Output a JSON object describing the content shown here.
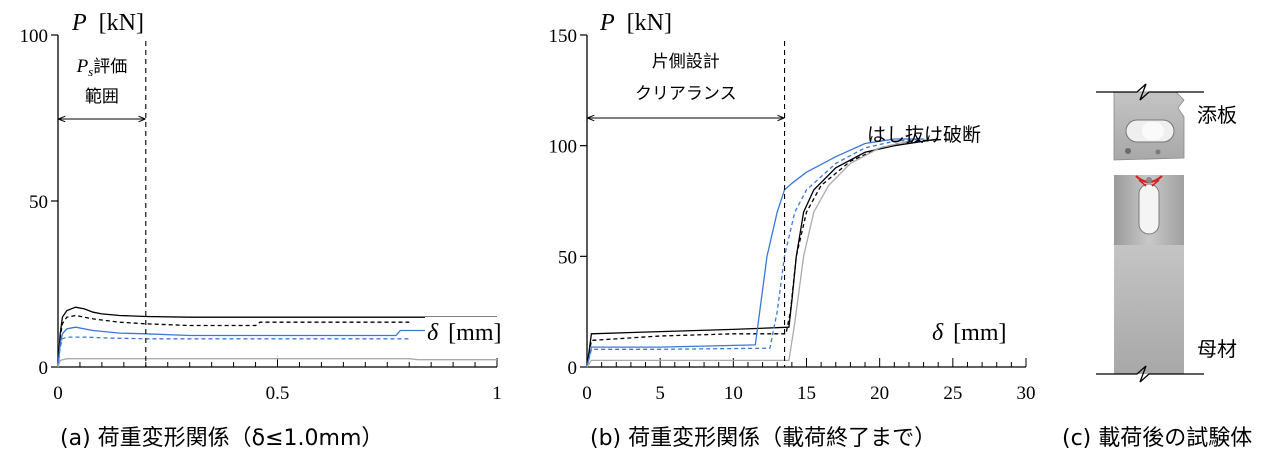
{
  "chart_data": [
    {
      "id": "a",
      "type": "line",
      "caption": "(a) 荷重変形関係（δ≤1.0mm）",
      "ylabel_symbol": "P",
      "ylabel_unit": "[kN]",
      "xlabel_symbol": "δ",
      "xlabel_unit": "[mm]",
      "xlim": [
        0,
        1
      ],
      "ylim": [
        0,
        100
      ],
      "xticks": [
        0,
        0.5,
        1
      ],
      "xtick_labels": [
        "0",
        "0.5",
        "1"
      ],
      "yticks": [
        0,
        50,
        100
      ],
      "ytick_labels": [
        "0",
        "50",
        "100"
      ],
      "annotation": {
        "line1": "Ps評価",
        "line2": "範囲",
        "x_end": 0.2
      },
      "series": [
        {
          "color": "#000000",
          "dash": "solid",
          "x": [
            0,
            0.005,
            0.01,
            0.02,
            0.04,
            0.06,
            0.08,
            0.1,
            0.14,
            0.2,
            0.3,
            0.5,
            0.7,
            0.9,
            1.0
          ],
          "y": [
            0,
            10,
            15,
            17,
            18,
            17.5,
            16.5,
            16,
            15.5,
            15.2,
            15,
            15,
            15,
            15,
            15
          ]
        },
        {
          "color": "#000000",
          "dash": "dashed",
          "x": [
            0,
            0.005,
            0.01,
            0.02,
            0.04,
            0.08,
            0.14,
            0.2,
            0.3,
            0.45,
            0.46,
            0.6,
            0.8
          ],
          "y": [
            0,
            9,
            13,
            15,
            15.5,
            14.5,
            13.5,
            13,
            12.5,
            12.5,
            13.5,
            13.5,
            13.5
          ]
        },
        {
          "color": "#3a78d8",
          "dash": "solid",
          "x": [
            0,
            0.005,
            0.01,
            0.02,
            0.04,
            0.08,
            0.14,
            0.2,
            0.3,
            0.5,
            0.7,
            0.77,
            0.78,
            0.85
          ],
          "y": [
            0,
            7,
            10,
            11.5,
            12,
            11,
            10.2,
            10,
            9.5,
            9.5,
            9.5,
            9.5,
            11,
            11
          ]
        },
        {
          "color": "#3a78d8",
          "dash": "dashed",
          "x": [
            0,
            0.005,
            0.01,
            0.02,
            0.06,
            0.12,
            0.2,
            0.4,
            0.6,
            0.8
          ],
          "y": [
            0,
            6,
            8.5,
            9,
            9,
            8.7,
            8.5,
            8.5,
            8.5,
            8.5
          ]
        },
        {
          "color": "#aaaaaa",
          "dash": "solid",
          "x": [
            0,
            0.005,
            0.02,
            0.1,
            0.2,
            0.4,
            0.6,
            0.8,
            0.82,
            1.0
          ],
          "y": [
            0,
            2,
            2.5,
            2.5,
            2.5,
            2.5,
            2.5,
            2.5,
            2.2,
            2.2
          ]
        }
      ]
    },
    {
      "id": "b",
      "type": "line",
      "caption": "(b) 荷重変形関係（載荷終了まで）",
      "ylabel_symbol": "P",
      "ylabel_unit": "[kN]",
      "xlabel_symbol": "δ",
      "xlabel_unit": "[mm]",
      "xlim": [
        0,
        30
      ],
      "ylim": [
        0,
        150
      ],
      "xticks": [
        0,
        5,
        10,
        15,
        20,
        25,
        30
      ],
      "xtick_labels": [
        "0",
        "5",
        "10",
        "15",
        "20",
        "25",
        "30"
      ],
      "yticks": [
        0,
        50,
        100,
        150
      ],
      "ytick_labels": [
        "0",
        "50",
        "100",
        "150"
      ],
      "annotation": {
        "line1": "片側設計",
        "line2": "クリアランス",
        "x_end": 13.5
      },
      "fracture_label": "はし抜け破断",
      "series": [
        {
          "color": "#000000",
          "dash": "solid",
          "x": [
            0,
            0.3,
            5,
            10,
            13.8,
            14.0,
            14.3,
            14.8,
            15.5,
            17,
            19,
            21,
            23,
            24
          ],
          "y": [
            0,
            15,
            16,
            17,
            18,
            30,
            50,
            70,
            80,
            90,
            97,
            100,
            102,
            103
          ]
        },
        {
          "color": "#000000",
          "dash": "dashed",
          "x": [
            0,
            0.3,
            5,
            10,
            13.6,
            13.9,
            14.3,
            15,
            16,
            18,
            20,
            22,
            25
          ],
          "y": [
            0,
            12,
            14,
            15,
            15,
            25,
            50,
            70,
            82,
            93,
            99,
            102,
            103
          ]
        },
        {
          "color": "#3a78d8",
          "dash": "solid",
          "x": [
            0,
            0.3,
            5,
            11.5,
            11.8,
            12.3,
            13.0,
            13.5,
            14,
            15,
            17,
            19,
            21,
            23
          ],
          "y": [
            0,
            9,
            9,
            10,
            25,
            50,
            70,
            80,
            83,
            88,
            95,
            101,
            103,
            103
          ]
        },
        {
          "color": "#3a78d8",
          "dash": "dashed",
          "x": [
            0,
            0.3,
            5,
            12.5,
            13,
            13.5,
            14.2,
            15,
            17,
            19,
            21,
            23
          ],
          "y": [
            0,
            8,
            8,
            8.5,
            25,
            50,
            70,
            80,
            92,
            99,
            102,
            103
          ]
        },
        {
          "color": "#aaaaaa",
          "dash": "solid",
          "x": [
            0,
            0.3,
            10,
            13.8,
            14.2,
            14.8,
            15.5,
            16.5,
            18,
            20,
            22
          ],
          "y": [
            0,
            3,
            3,
            3,
            20,
            50,
            70,
            82,
            92,
            99,
            102
          ]
        }
      ]
    }
  ],
  "photo": {
    "caption": "(c) 載荷後の試験体",
    "label_top": "添板",
    "label_bottom": "母材",
    "colors": {
      "steel": "#b9b9b9",
      "steel_dark": "#8e8e8e",
      "hole": "#f2f2f2",
      "crack": "#d22020"
    }
  }
}
